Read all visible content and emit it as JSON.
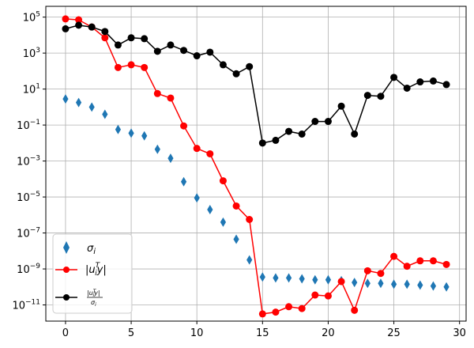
{
  "chart_data": {
    "type": "scatter",
    "xlim": [
      -1.5,
      30.5
    ],
    "ylim_log10": [
      -11.9,
      5.6
    ],
    "y_scale": "log",
    "grid": true,
    "legend_position": "lower-left",
    "x_ticks": [
      {
        "value": 0,
        "label": "0"
      },
      {
        "value": 5,
        "label": "5"
      },
      {
        "value": 10,
        "label": "10"
      },
      {
        "value": 15,
        "label": "15"
      },
      {
        "value": 20,
        "label": "20"
      },
      {
        "value": 25,
        "label": "25"
      },
      {
        "value": 30,
        "label": "30"
      }
    ],
    "y_ticks": [
      {
        "exp": 5,
        "base": "10",
        "sup": "5"
      },
      {
        "exp": 3,
        "base": "10",
        "sup": "3"
      },
      {
        "exp": 1,
        "base": "10",
        "sup": "1"
      },
      {
        "exp": -1,
        "base": "10",
        "sup": "−1"
      },
      {
        "exp": -3,
        "base": "10",
        "sup": "−3"
      },
      {
        "exp": -5,
        "base": "10",
        "sup": "−5"
      },
      {
        "exp": -7,
        "base": "10",
        "sup": "−7"
      },
      {
        "exp": -9,
        "base": "10",
        "sup": "−9"
      },
      {
        "exp": -11,
        "base": "10",
        "sup": "−11"
      }
    ],
    "x": [
      0,
      1,
      2,
      3,
      4,
      5,
      6,
      7,
      8,
      9,
      10,
      11,
      12,
      13,
      14,
      15,
      16,
      17,
      18,
      19,
      20,
      21,
      22,
      23,
      24,
      25,
      26,
      27,
      28,
      29
    ],
    "series": [
      {
        "key": "sigma",
        "legend_label": "σi",
        "color": "#1f77b4",
        "marker": "diamond",
        "line": false,
        "log10_values": [
          0.45,
          0.25,
          0.0,
          -0.4,
          -1.25,
          -1.45,
          -1.6,
          -2.35,
          -2.85,
          -4.15,
          -5.05,
          -5.7,
          -6.4,
          -7.35,
          -8.5,
          -9.45,
          -9.5,
          -9.5,
          -9.55,
          -9.6,
          -9.6,
          -9.65,
          -9.75,
          -9.8,
          -9.8,
          -9.85,
          -9.85,
          -9.9,
          -9.95,
          -10.0
        ]
      },
      {
        "key": "uty",
        "legend_label": "|uiTy|",
        "color": "#ff0000",
        "marker": "circle",
        "line": true,
        "log10_values": [
          4.9,
          4.85,
          4.45,
          3.85,
          2.2,
          2.35,
          2.2,
          0.75,
          0.5,
          -1.05,
          -2.3,
          -2.6,
          -4.1,
          -5.5,
          -6.25,
          -11.5,
          -11.4,
          -11.1,
          -11.2,
          -10.45,
          -10.5,
          -9.7,
          -11.3,
          -9.1,
          -9.25,
          -8.3,
          -8.85,
          -8.55,
          -8.55,
          -8.75
        ]
      },
      {
        "key": "ratio",
        "legend_label": "|uiTy| / σi",
        "color": "#000000",
        "marker": "circle",
        "line": true,
        "log10_values": [
          4.35,
          4.55,
          4.45,
          4.2,
          3.45,
          3.85,
          3.8,
          3.1,
          3.45,
          3.15,
          2.85,
          3.05,
          2.35,
          1.85,
          2.25,
          -2.0,
          -1.85,
          -1.35,
          -1.5,
          -0.8,
          -0.8,
          0.05,
          -1.5,
          0.65,
          0.6,
          1.65,
          1.05,
          1.4,
          1.45,
          1.25
        ]
      }
    ],
    "legend": {
      "sigma": {
        "main": "σ",
        "sub": "i"
      },
      "uty": {
        "bar_l": "|",
        "u": "u",
        "sup": "T",
        "sub": "i",
        "y": "y",
        "bar_r": "|"
      },
      "ratio": {
        "num": "|u",
        "num_sup": "T",
        "num_sub": "i",
        "num_rest": "y|",
        "den": "σ",
        "den_sub": "i"
      }
    }
  }
}
